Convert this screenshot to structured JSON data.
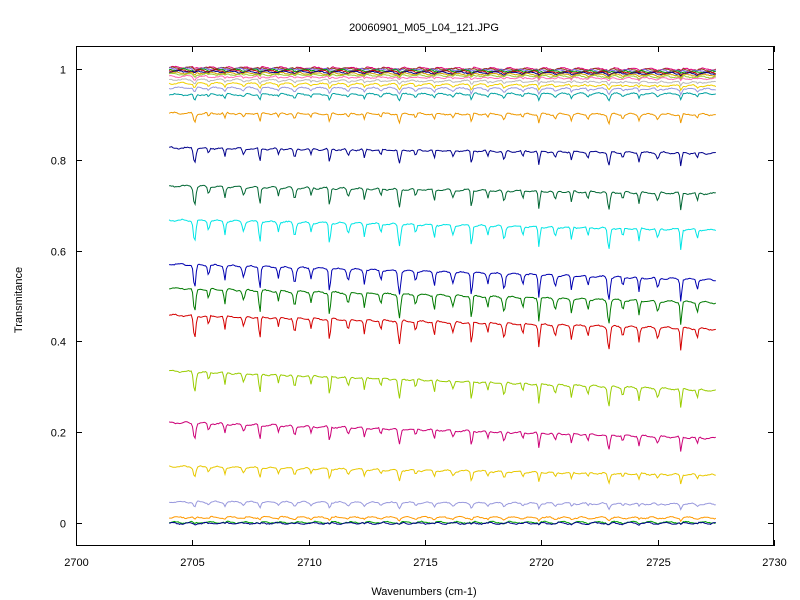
{
  "chart_data": {
    "type": "line",
    "title": "20060901_M05_L04_121.JPG",
    "xlabel": "Wavenumbers (cm-1)",
    "ylabel": "Transmitance",
    "xlim": [
      2700,
      2730
    ],
    "ylim": [
      -0.05,
      1.05
    ],
    "xticks": [
      "2700",
      "2705",
      "2710",
      "2715",
      "2720",
      "2725",
      "2730"
    ],
    "yticks": [
      "0",
      "0.2",
      "0.4",
      "0.6",
      "0.8",
      "1"
    ],
    "x_range": [
      2704,
      2727.5
    ],
    "grid": false,
    "legend": "none",
    "absorption_lines_cm1": [
      2705.1,
      2705.7,
      2706.4,
      2707.2,
      2707.9,
      2708.7,
      2709.4,
      2710.1,
      2710.9,
      2711.7,
      2712.4,
      2713.1,
      2713.9,
      2714.6,
      2715.4,
      2716.2,
      2717.0,
      2717.7,
      2718.4,
      2719.2,
      2719.9,
      2720.6,
      2721.3,
      2722.0,
      2722.9,
      2723.5,
      2724.2,
      2725.0,
      2726.0,
      2726.7
    ],
    "series": [
      {
        "color": "#e2007a",
        "start": 1.003,
        "end": 0.999
      },
      {
        "color": "#8b4513",
        "start": 1.002,
        "end": 0.997
      },
      {
        "color": "#7b68ee",
        "start": 1.0,
        "end": 0.995
      },
      {
        "color": "#00a000",
        "start": 0.998,
        "end": 0.993
      },
      {
        "color": "#c00000",
        "start": 0.996,
        "end": 0.991
      },
      {
        "color": "#00008b",
        "start": 0.994,
        "end": 0.989
      },
      {
        "color": "#d4a000",
        "start": 0.991,
        "end": 0.986
      },
      {
        "color": "#9acd32",
        "start": 0.988,
        "end": 0.982
      },
      {
        "color": "#ff69b4",
        "start": 0.983,
        "end": 0.978
      },
      {
        "color": "#b8b8b8",
        "start": 0.976,
        "end": 0.97
      },
      {
        "color": "#f0d000",
        "start": 0.968,
        "end": 0.962
      },
      {
        "color": "#9999dd",
        "start": 0.958,
        "end": 0.955
      },
      {
        "color": "#00a0a0",
        "start": 0.943,
        "end": 0.945
      },
      {
        "color": "#ee9900",
        "start": 0.902,
        "end": 0.899
      },
      {
        "color": "#00008b",
        "start": 0.826,
        "end": 0.814
      },
      {
        "color": "#006633",
        "start": 0.742,
        "end": 0.725
      },
      {
        "color": "#00e5e5",
        "start": 0.667,
        "end": 0.645
      },
      {
        "color": "#0000b0",
        "start": 0.57,
        "end": 0.535
      },
      {
        "color": "#007a00",
        "start": 0.517,
        "end": 0.485
      },
      {
        "color": "#d40000",
        "start": 0.458,
        "end": 0.427
      },
      {
        "color": "#99cc00",
        "start": 0.335,
        "end": 0.292
      },
      {
        "color": "#cc0077",
        "start": 0.222,
        "end": 0.187
      },
      {
        "color": "#e8c800",
        "start": 0.125,
        "end": 0.106
      },
      {
        "color": "#9999dd",
        "start": 0.047,
        "end": 0.042
      },
      {
        "color": "#ff9900",
        "start": 0.013,
        "end": 0.012
      },
      {
        "color": "#00a000",
        "start": 0.002,
        "end": 0.002
      },
      {
        "color": "#00008b",
        "start": 0.0,
        "end": 0.0
      }
    ]
  }
}
